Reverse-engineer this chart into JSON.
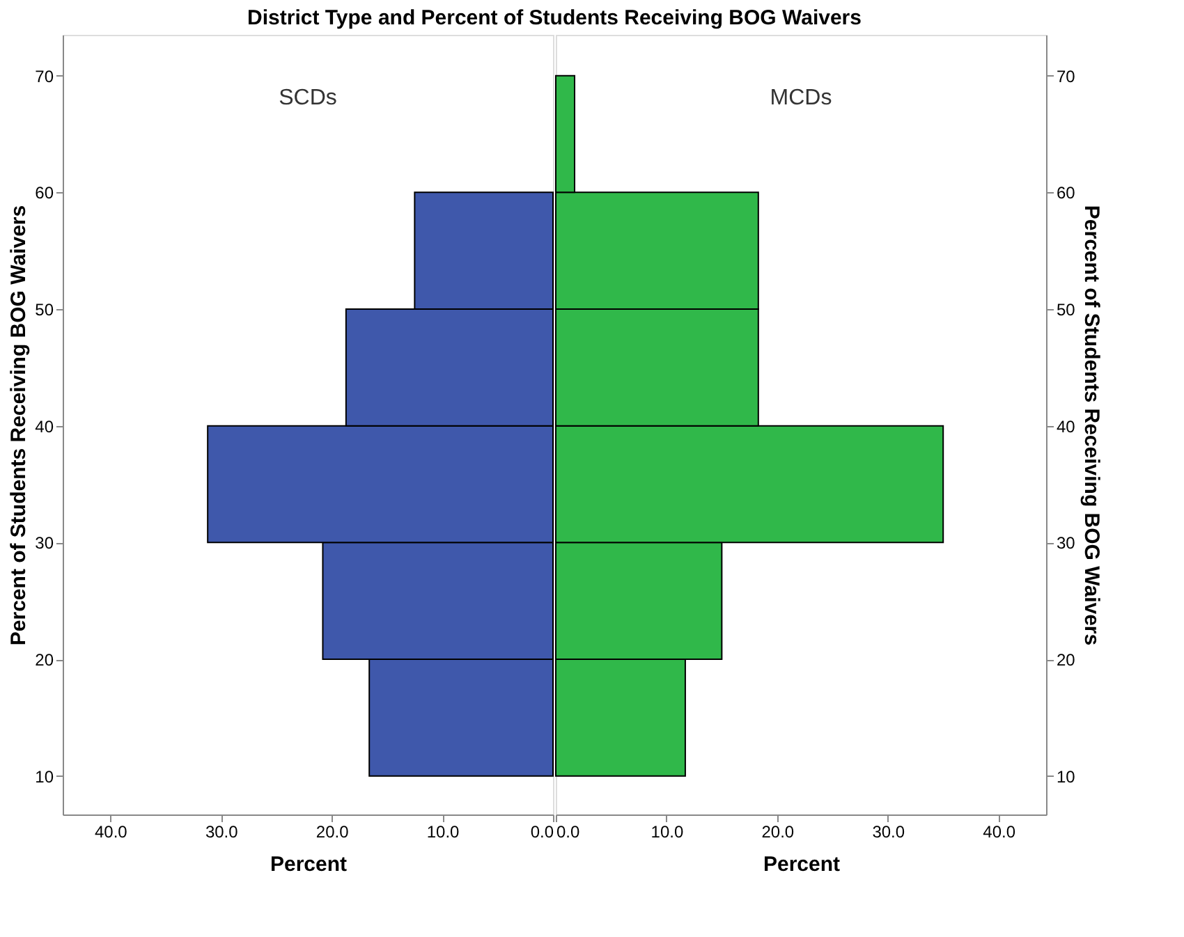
{
  "chart_data": [
    {
      "type": "histogram",
      "title": "District Type and Percent of Students Receiving BOG Waivers",
      "orientation": "horizontal",
      "xlabel": "Percent",
      "ylabel": "Percent of Students Receiving BOG Waivers",
      "annotations": [
        "SCDs"
      ],
      "bins": [
        10,
        20,
        30,
        40,
        50,
        60
      ],
      "values": [
        16.6,
        20.8,
        31.2,
        18.7,
        12.5
      ],
      "color": "#3f58ab",
      "xlim": [
        44.3,
        0
      ],
      "xticks": [
        {
          "value": 40,
          "label": "40.0"
        },
        {
          "value": 30,
          "label": "30.0"
        },
        {
          "value": 20,
          "label": "20.0"
        },
        {
          "value": 10,
          "label": "10.0"
        },
        {
          "value": 0,
          "label": "0.0"
        }
      ],
      "ylim": [
        6.7,
        73.5
      ],
      "yticks": [
        10,
        20,
        30,
        40,
        50,
        60,
        70
      ],
      "grid": false
    },
    {
      "type": "histogram",
      "orientation": "horizontal",
      "xlabel": "Percent",
      "ylabel": "Percent of Students Receiving BOG Waivers",
      "annotations": [
        "MCDs"
      ],
      "bins": [
        10,
        20,
        30,
        40,
        50,
        60,
        70
      ],
      "values": [
        11.7,
        15.0,
        35.0,
        18.3,
        18.3,
        1.7
      ],
      "color": "#30b84a",
      "xlim": [
        0,
        44.3
      ],
      "xticks": [
        {
          "value": 0,
          "label": "0.0"
        },
        {
          "value": 10,
          "label": "10.0"
        },
        {
          "value": 20,
          "label": "20.0"
        },
        {
          "value": 30,
          "label": "30.0"
        },
        {
          "value": 40,
          "label": "40.0"
        }
      ],
      "ylim": [
        6.7,
        73.5
      ],
      "yticks": [
        10,
        20,
        30,
        40,
        50,
        60,
        70
      ],
      "grid": false
    }
  ]
}
